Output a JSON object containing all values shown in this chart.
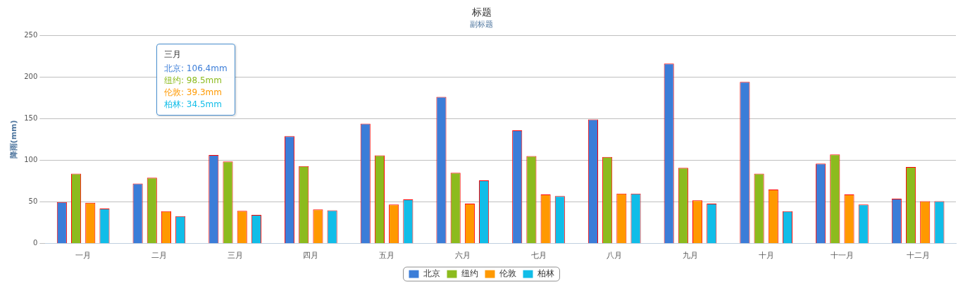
{
  "chart_data": {
    "type": "bar",
    "title": "标题",
    "subtitle": "副标题",
    "ylabel": "降雨(mm)",
    "categories": [
      "一月",
      "二月",
      "三月",
      "四月",
      "五月",
      "六月",
      "七月",
      "八月",
      "九月",
      "十月",
      "十一月",
      "十二月"
    ],
    "series": [
      {
        "name": "北京",
        "color": "#3b7dd8",
        "values": [
          50,
          72,
          106.4,
          129,
          144,
          176,
          136,
          149,
          216,
          194,
          96,
          54
        ]
      },
      {
        "name": "纽约",
        "color": "#8cbb1e",
        "values": [
          84,
          79,
          98.5,
          93,
          106,
          85,
          105,
          104,
          91,
          84,
          107,
          92
        ]
      },
      {
        "name": "伦敦",
        "color": "#ff9900",
        "values": [
          49,
          39,
          39.3,
          41,
          47,
          48,
          59,
          60,
          52,
          65,
          59,
          51
        ]
      },
      {
        "name": "柏林",
        "color": "#11bde8",
        "values": [
          42,
          33,
          34.5,
          40,
          53,
          76,
          57,
          60,
          48,
          39,
          47,
          51
        ]
      }
    ],
    "ylim": [
      0,
      250
    ],
    "yticks": [
      0,
      50,
      100,
      150,
      200,
      250
    ],
    "grid": "y",
    "legend": "bottom",
    "annotations": [
      "三月",
      "北京: 106.4mm",
      "纽约: 98.5mm",
      "伦敦: 39.3mm",
      "柏林: 34.5mm"
    ]
  }
}
